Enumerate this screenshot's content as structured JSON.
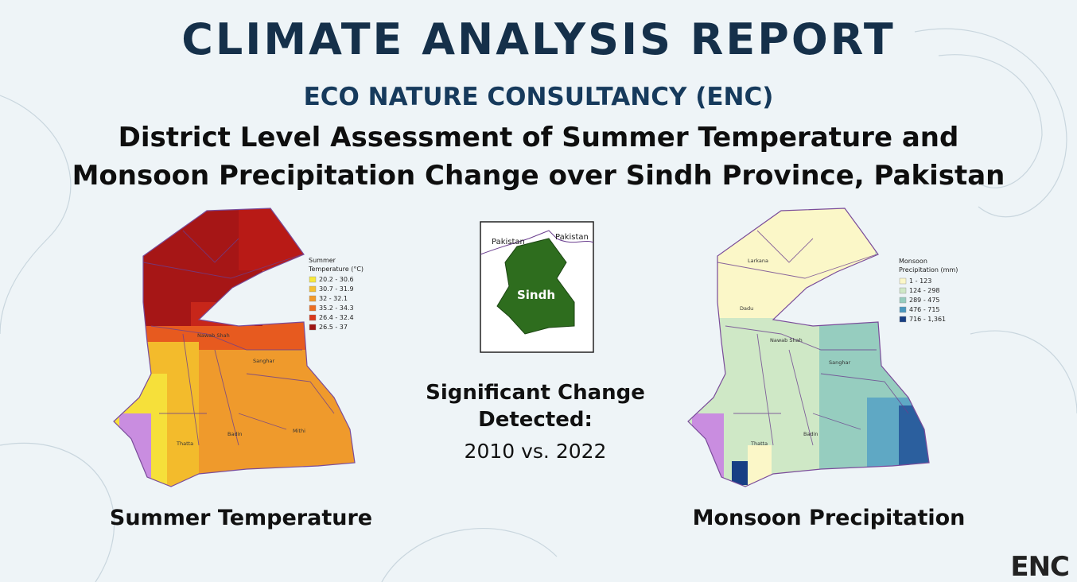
{
  "header": {
    "title": "CLIMATE ANALYSIS REPORT",
    "organization": "ECO NATURE CONSULTANCY (ENC)",
    "subtitle_lines": [
      "District Level Assessment of Summer Temperature and",
      "Monsoon Precipitation Change over Sindh Province, Pakistan"
    ]
  },
  "temperature_map": {
    "legend_title_lines": [
      "Summer",
      "Temperature (°C)"
    ],
    "legend": [
      {
        "label": "20.2 - 30.6",
        "color": "#f7e83a"
      },
      {
        "label": "30.7 - 31.9",
        "color": "#f5c030"
      },
      {
        "label": "32 - 32.1",
        "color": "#f2992a"
      },
      {
        "label": "35.2 - 34.3",
        "color": "#ec6e22"
      },
      {
        "label": "26.4 - 32.4",
        "color": "#d9381b"
      },
      {
        "label": "26.5 - 37",
        "color": "#9e1414"
      }
    ],
    "districts": [
      "Nawab Shah",
      "Sanghar",
      "Thatta",
      "Mithi",
      "Badin"
    ],
    "caption": "Summer Temperature"
  },
  "inset_map": {
    "labels": [
      "Pakistan",
      "Pakistan",
      "Sindh"
    ]
  },
  "center": {
    "lines": [
      "Significant Change",
      "Detected:"
    ],
    "period": "2010 vs. 2022"
  },
  "precipitation_map": {
    "legend_title_lines": [
      "Monsoon",
      "Precipitation (mm)"
    ],
    "legend": [
      {
        "label": "1 - 123",
        "color": "#fbf7c8"
      },
      {
        "label": "124 - 298",
        "color": "#cfe8c6"
      },
      {
        "label": "289 - 475",
        "color": "#96cdbf"
      },
      {
        "label": "476 - 715",
        "color": "#4a98bf"
      },
      {
        "label": "716 - 1,361",
        "color": "#173f84"
      }
    ],
    "districts": [
      "Larkana",
      "Dadu",
      "Nawab Shah",
      "Sanghar",
      "Thatta",
      "Badin"
    ],
    "caption": "Monsoon Precipitation"
  },
  "logo": "ENC"
}
